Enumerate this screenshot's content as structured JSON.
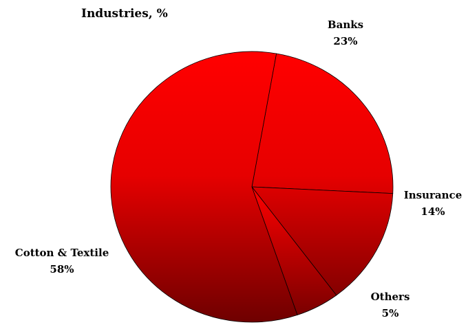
{
  "chart_data": {
    "type": "pie",
    "title": "Industries, %",
    "start_angle_deg": 80,
    "direction": "clockwise",
    "slices": [
      {
        "label": "Banks",
        "value": 23,
        "value_label": "23%"
      },
      {
        "label": "Insurance",
        "value": 14,
        "value_label": "14%"
      },
      {
        "label": "Others",
        "value": 5,
        "value_label": "5%"
      },
      {
        "label": "Cotton & Textile",
        "value": 58,
        "value_label": "58%"
      }
    ],
    "colors": {
      "light": "#ff0000",
      "dark": "#6e0000",
      "edge": "#000000"
    }
  }
}
